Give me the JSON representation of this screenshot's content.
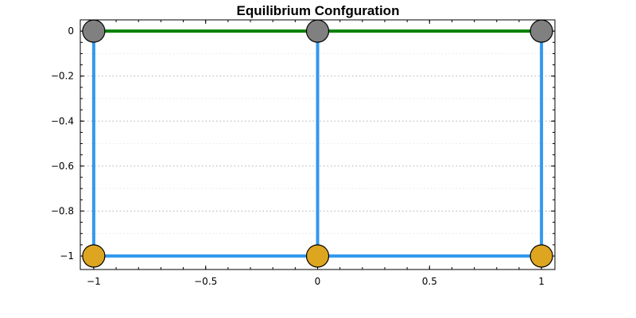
{
  "chart_data": {
    "type": "scatter",
    "title": "Equilibrium Confguration",
    "xlabel": "",
    "ylabel": "",
    "xlim": [
      -1.06,
      1.06
    ],
    "ylim": [
      -1.06,
      0.05
    ],
    "x_ticks": [
      -1,
      -0.5,
      0,
      0.5,
      1
    ],
    "y_ticks": [
      0,
      -0.2,
      -0.4,
      -0.6,
      -0.8,
      -1
    ],
    "x_tick_labels": [
      "−1",
      "−0.5",
      "0",
      "0.5",
      "1"
    ],
    "y_tick_labels": [
      "0",
      "−0.2",
      "−0.4",
      "−0.6",
      "−0.8",
      "−1"
    ],
    "grid": "horizontal dotted",
    "colors": {
      "top_line": "#008000",
      "springs": "#3399ee",
      "fixed_node": "#808080",
      "free_node": "#dda520",
      "node_edge": "#000000",
      "grid": "#b0b0b0"
    },
    "series": [
      {
        "role": "top_line",
        "x": [
          -1,
          0,
          1
        ],
        "y": [
          0,
          0,
          0
        ]
      },
      {
        "role": "spring",
        "x": [
          -1,
          -1
        ],
        "y": [
          0,
          -1
        ]
      },
      {
        "role": "spring",
        "x": [
          0,
          0
        ],
        "y": [
          0,
          -1
        ]
      },
      {
        "role": "spring",
        "x": [
          1,
          1
        ],
        "y": [
          0,
          -1
        ]
      },
      {
        "role": "spring",
        "x": [
          -1,
          0,
          1
        ],
        "y": [
          -1,
          -1,
          -1
        ]
      },
      {
        "role": "fixed_nodes",
        "x": [
          -1,
          0,
          1
        ],
        "y": [
          0,
          0,
          0
        ]
      },
      {
        "role": "free_nodes",
        "x": [
          -1,
          0,
          1
        ],
        "y": [
          -1,
          -1,
          -1
        ]
      }
    ]
  }
}
